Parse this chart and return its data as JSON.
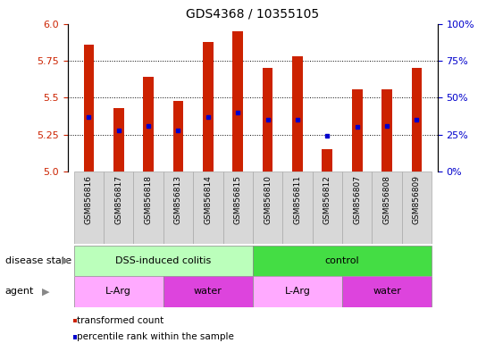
{
  "title": "GDS4368 / 10355105",
  "samples": [
    "GSM856816",
    "GSM856817",
    "GSM856818",
    "GSM856813",
    "GSM856814",
    "GSM856815",
    "GSM856810",
    "GSM856811",
    "GSM856812",
    "GSM856807",
    "GSM856808",
    "GSM856809"
  ],
  "bar_values": [
    5.86,
    5.43,
    5.64,
    5.48,
    5.88,
    5.95,
    5.7,
    5.78,
    5.15,
    5.56,
    5.56,
    5.7
  ],
  "bar_base": 5.0,
  "blue_dot_values": [
    5.37,
    5.28,
    5.31,
    5.28,
    5.37,
    5.4,
    5.35,
    5.35,
    5.24,
    5.3,
    5.31,
    5.35
  ],
  "ylim": [
    5.0,
    6.0
  ],
  "yticks_left": [
    5.0,
    5.25,
    5.5,
    5.75,
    6.0
  ],
  "yticks_right_labels": [
    "0%",
    "25%",
    "50%",
    "75%",
    "100%"
  ],
  "bar_color": "#cc2200",
  "dot_color": "#0000cc",
  "background_color": "#ffffff",
  "xticklabel_bg": "#d8d8d8",
  "disease_state_groups": [
    {
      "label": "DSS-induced colitis",
      "start": 0,
      "end": 6,
      "color": "#bbffbb"
    },
    {
      "label": "control",
      "start": 6,
      "end": 12,
      "color": "#44dd44"
    }
  ],
  "agent_groups": [
    {
      "label": "L-Arg",
      "start": 0,
      "end": 3,
      "color": "#ffaaff"
    },
    {
      "label": "water",
      "start": 3,
      "end": 6,
      "color": "#dd44dd"
    },
    {
      "label": "L-Arg",
      "start": 6,
      "end": 9,
      "color": "#ffaaff"
    },
    {
      "label": "water",
      "start": 9,
      "end": 12,
      "color": "#dd44dd"
    }
  ],
  "legend_items": [
    {
      "label": "transformed count",
      "color": "#cc2200"
    },
    {
      "label": "percentile rank within the sample",
      "color": "#0000cc"
    }
  ],
  "tick_color_left": "#cc2200",
  "tick_color_right": "#0000cc",
  "title_fontsize": 10,
  "annotation_fontsize": 8,
  "tick_fontsize": 8,
  "xticklabel_fontsize": 6.5,
  "legend_fontsize": 7.5,
  "bar_width": 0.35
}
